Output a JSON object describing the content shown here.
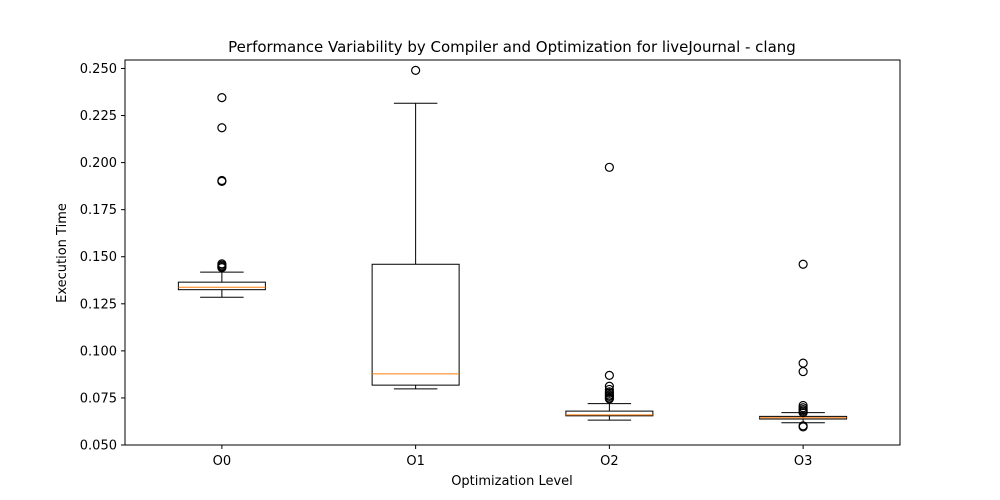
{
  "chart_data": {
    "type": "box",
    "title": "Performance Variability by Compiler and Optimization for liveJournal - clang",
    "xlabel": "Optimization Level",
    "ylabel": "Execution Time",
    "ylim": [
      0.05,
      0.2545
    ],
    "yticks": [
      "0.050",
      "0.075",
      "0.100",
      "0.125",
      "0.150",
      "0.175",
      "0.200",
      "0.225",
      "0.250"
    ],
    "categories": [
      "O0",
      "O1",
      "O2",
      "O3"
    ],
    "grid": false,
    "colors": {
      "box": "#000000",
      "median": "#ff7f0e",
      "flier": "#000000"
    },
    "boxes": [
      {
        "label": "O0",
        "whislo": 0.1285,
        "q1": 0.1325,
        "med": 0.1338,
        "q3": 0.1365,
        "whishi": 0.1418,
        "fliers": [
          0.2345,
          0.2185,
          0.1905,
          0.19,
          0.1462,
          0.1455,
          0.1448,
          0.1442
        ]
      },
      {
        "label": "O1",
        "whislo": 0.0798,
        "q1": 0.0818,
        "med": 0.0878,
        "q3": 0.146,
        "whishi": 0.2315,
        "fliers": [
          0.249
        ]
      },
      {
        "label": "O2",
        "whislo": 0.0632,
        "q1": 0.0655,
        "med": 0.066,
        "q3": 0.068,
        "whishi": 0.072,
        "fliers": [
          0.1975,
          0.087,
          0.0812,
          0.0795,
          0.0782,
          0.0775,
          0.0765,
          0.0758,
          0.075,
          0.0745
        ]
      },
      {
        "label": "O3",
        "whislo": 0.0618,
        "q1": 0.0638,
        "med": 0.0645,
        "q3": 0.0652,
        "whishi": 0.0672,
        "fliers": [
          0.146,
          0.0935,
          0.089,
          0.071,
          0.0698,
          0.0688,
          0.068,
          0.0672,
          0.0602,
          0.0596
        ]
      }
    ]
  }
}
